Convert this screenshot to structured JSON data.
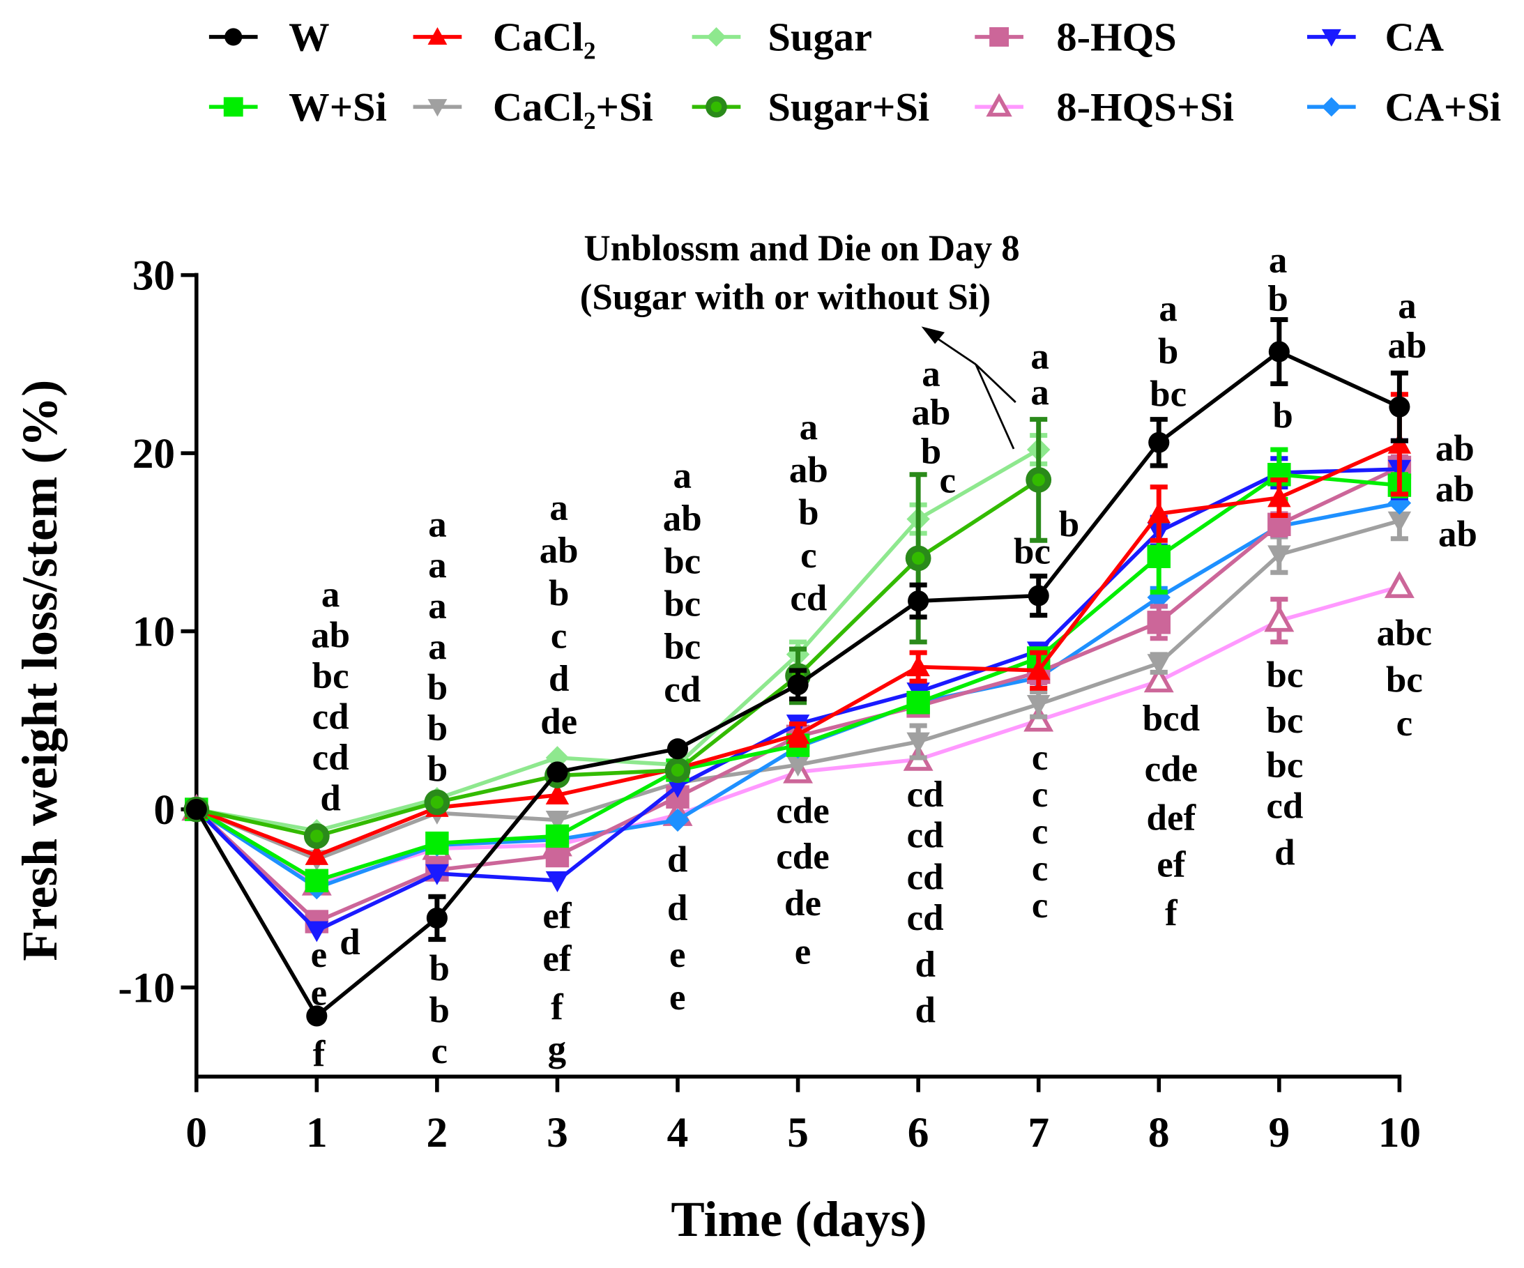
{
  "chart_data": {
    "type": "line",
    "title": "",
    "xlabel": "Time (days)",
    "ylabel": "Fresh weight loss/stem (%)",
    "x": [
      0,
      1,
      2,
      3,
      4,
      5,
      6,
      7,
      8,
      9,
      10
    ],
    "xlim": [
      0,
      10
    ],
    "ylim": [
      -15,
      30
    ],
    "xticks": [
      "0",
      "1",
      "2",
      "3",
      "4",
      "5",
      "6",
      "7",
      "8",
      "9",
      "10"
    ],
    "yticks": [
      30,
      20,
      10,
      0,
      -10
    ],
    "grid": false,
    "legend_position": "top",
    "series": [
      {
        "name": "W",
        "color": "#000000",
        "marker": "circle",
        "values": [
          0,
          -11.6,
          -6.1,
          2.1,
          3.4,
          7.0,
          11.7,
          12.0,
          20.6,
          25.7,
          22.6
        ],
        "err": [
          0,
          0.3,
          1.2,
          0.3,
          0.3,
          0.8,
          0.9,
          1.1,
          1.3,
          1.8,
          1.9
        ]
      },
      {
        "name": "CaCl₂",
        "color": "#ff0000",
        "marker": "triangle-up",
        "values": [
          0,
          -2.6,
          0.1,
          0.8,
          2.3,
          4.2,
          8.0,
          7.8,
          16.6,
          17.5,
          20.5
        ],
        "err": [
          0,
          0.3,
          0.3,
          0.3,
          0.3,
          0.6,
          0.8,
          1.0,
          1.5,
          1.0,
          2.8
        ]
      },
      {
        "name": "Sugar",
        "color": "#8ee88e",
        "marker": "diamond",
        "values": [
          0,
          -1.2,
          0.6,
          2.9,
          2.5,
          8.7,
          16.3,
          20.2,
          null,
          null,
          null
        ],
        "err": [
          0,
          0.3,
          0.3,
          0.3,
          0.3,
          0.7,
          0.8,
          0.8,
          null,
          null,
          null
        ]
      },
      {
        "name": "8-HQS",
        "color": "#cc6699",
        "marker": "square",
        "values": [
          0,
          -6.3,
          -3.4,
          -2.6,
          0.7,
          4.1,
          5.8,
          7.7,
          10.5,
          16.0,
          19.2
        ],
        "err": [
          0,
          0.4,
          0.4,
          0.4,
          0.4,
          0.5,
          0.5,
          0.6,
          0.9,
          0.6,
          0.6
        ]
      },
      {
        "name": "CA",
        "color": "#1a1aff",
        "marker": "triangle-down",
        "values": [
          0,
          -6.8,
          -3.6,
          -4.0,
          1.3,
          4.8,
          6.6,
          8.9,
          15.6,
          18.9,
          19.1
        ],
        "err": [
          0,
          0.3,
          0.3,
          0.3,
          0.3,
          0.4,
          0.4,
          0.4,
          0.8,
          0.8,
          1.6
        ]
      },
      {
        "name": "W+Si",
        "color": "#00ee00",
        "marker": "square",
        "values": [
          0,
          -4.0,
          -1.9,
          -1.5,
          2.2,
          3.6,
          6.0,
          8.5,
          14.2,
          18.8,
          18.2
        ],
        "err": [
          0,
          0.3,
          0.3,
          0.3,
          0.3,
          0.4,
          0.4,
          0.4,
          2.0,
          1.4,
          0.6
        ]
      },
      {
        "name": "CaCl₂+Si",
        "color": "#a0a0a0",
        "marker": "triangle-down",
        "values": [
          0,
          -2.8,
          -0.2,
          -0.6,
          1.5,
          2.5,
          3.8,
          5.9,
          8.2,
          14.3,
          16.2
        ],
        "err": [
          0,
          0.3,
          0.3,
          0.3,
          0.3,
          0.3,
          0.9,
          0.7,
          0.5,
          1.0,
          1.0
        ]
      },
      {
        "name": "Sugar+Si",
        "color": "#33bb00",
        "marker": "ring",
        "values": [
          0,
          -1.5,
          0.4,
          1.9,
          2.2,
          7.5,
          14.1,
          18.5,
          null,
          null,
          null
        ],
        "err": [
          0,
          0.3,
          0.3,
          0.3,
          0.3,
          1.5,
          4.7,
          3.4,
          null,
          null,
          null
        ]
      },
      {
        "name": "8-HQS+Si",
        "color": "#ff99ff",
        "marker": "triangle-open",
        "values": [
          0,
          -4.2,
          -2.2,
          -2.0,
          -0.3,
          2.1,
          2.8,
          5.0,
          7.2,
          10.6,
          12.5
        ],
        "err": [
          0,
          0.3,
          0.3,
          0.3,
          0.3,
          0.3,
          0.4,
          0.4,
          0.4,
          1.2,
          0.3
        ]
      },
      {
        "name": "CA+Si",
        "color": "#1e90ff",
        "marker": "diamond",
        "values": [
          0,
          -4.4,
          -2.0,
          -1.7,
          -0.6,
          3.5,
          6.0,
          7.4,
          11.9,
          15.9,
          17.2
        ],
        "err": [
          0,
          0.3,
          0.3,
          0.3,
          0.3,
          0.4,
          0.4,
          0.4,
          0.5,
          0.5,
          0.4
        ]
      }
    ],
    "annotations": {
      "note_line1": "Unblossm and Die on Day 8",
      "note_line2": "(Sugar with or without Si)"
    },
    "significance_letters": [
      {
        "day": 1,
        "above": [
          "a",
          "ab",
          "bc",
          "cd",
          "cd",
          "d"
        ],
        "side": [
          "d"
        ],
        "below": [
          "e",
          "e",
          "f"
        ]
      },
      {
        "day": 2,
        "above": [
          "a",
          "a",
          "a",
          "a",
          "b",
          "b",
          "b"
        ],
        "side": [],
        "below": [
          "b",
          "b",
          "c"
        ]
      },
      {
        "day": 3,
        "above": [
          "a",
          "ab",
          "b",
          "c",
          "d",
          "de"
        ],
        "side": [],
        "below": [
          "ef",
          "ef",
          "f",
          "g"
        ]
      },
      {
        "day": 4,
        "above": [
          "a",
          "ab",
          "bc",
          "bc",
          "bc",
          "cd"
        ],
        "side": [],
        "below": [
          "d",
          "d",
          "e",
          "e"
        ]
      },
      {
        "day": 5,
        "above": [
          "a",
          "ab",
          "b",
          "c",
          "cd"
        ],
        "side": [],
        "below": [
          "cde",
          "cde",
          "de",
          "e"
        ]
      },
      {
        "day": 6,
        "above": [
          "a",
          "ab",
          "b"
        ],
        "side": [
          "c"
        ],
        "below": [
          "cd",
          "cd",
          "cd",
          "cd",
          "d",
          "d"
        ]
      },
      {
        "day": 7,
        "above": [
          "a",
          "a"
        ],
        "side": [
          "b",
          "bc"
        ],
        "below": [
          "c",
          "c",
          "c",
          "c",
          "c"
        ]
      },
      {
        "day": 8,
        "above": [
          "a",
          "b",
          "bc"
        ],
        "side": [],
        "below": [
          "bcd",
          "cde",
          "def",
          "ef",
          "f"
        ]
      },
      {
        "day": 9,
        "above": [
          "a",
          "b"
        ],
        "side": [
          "b"
        ],
        "below": [
          "bc",
          "bc",
          "bc",
          "cd",
          "d"
        ]
      },
      {
        "day": 10,
        "above": [
          "a",
          "ab"
        ],
        "side": [
          "ab",
          "ab",
          "ab"
        ],
        "below": [
          "abc",
          "bc",
          "c"
        ]
      }
    ]
  }
}
